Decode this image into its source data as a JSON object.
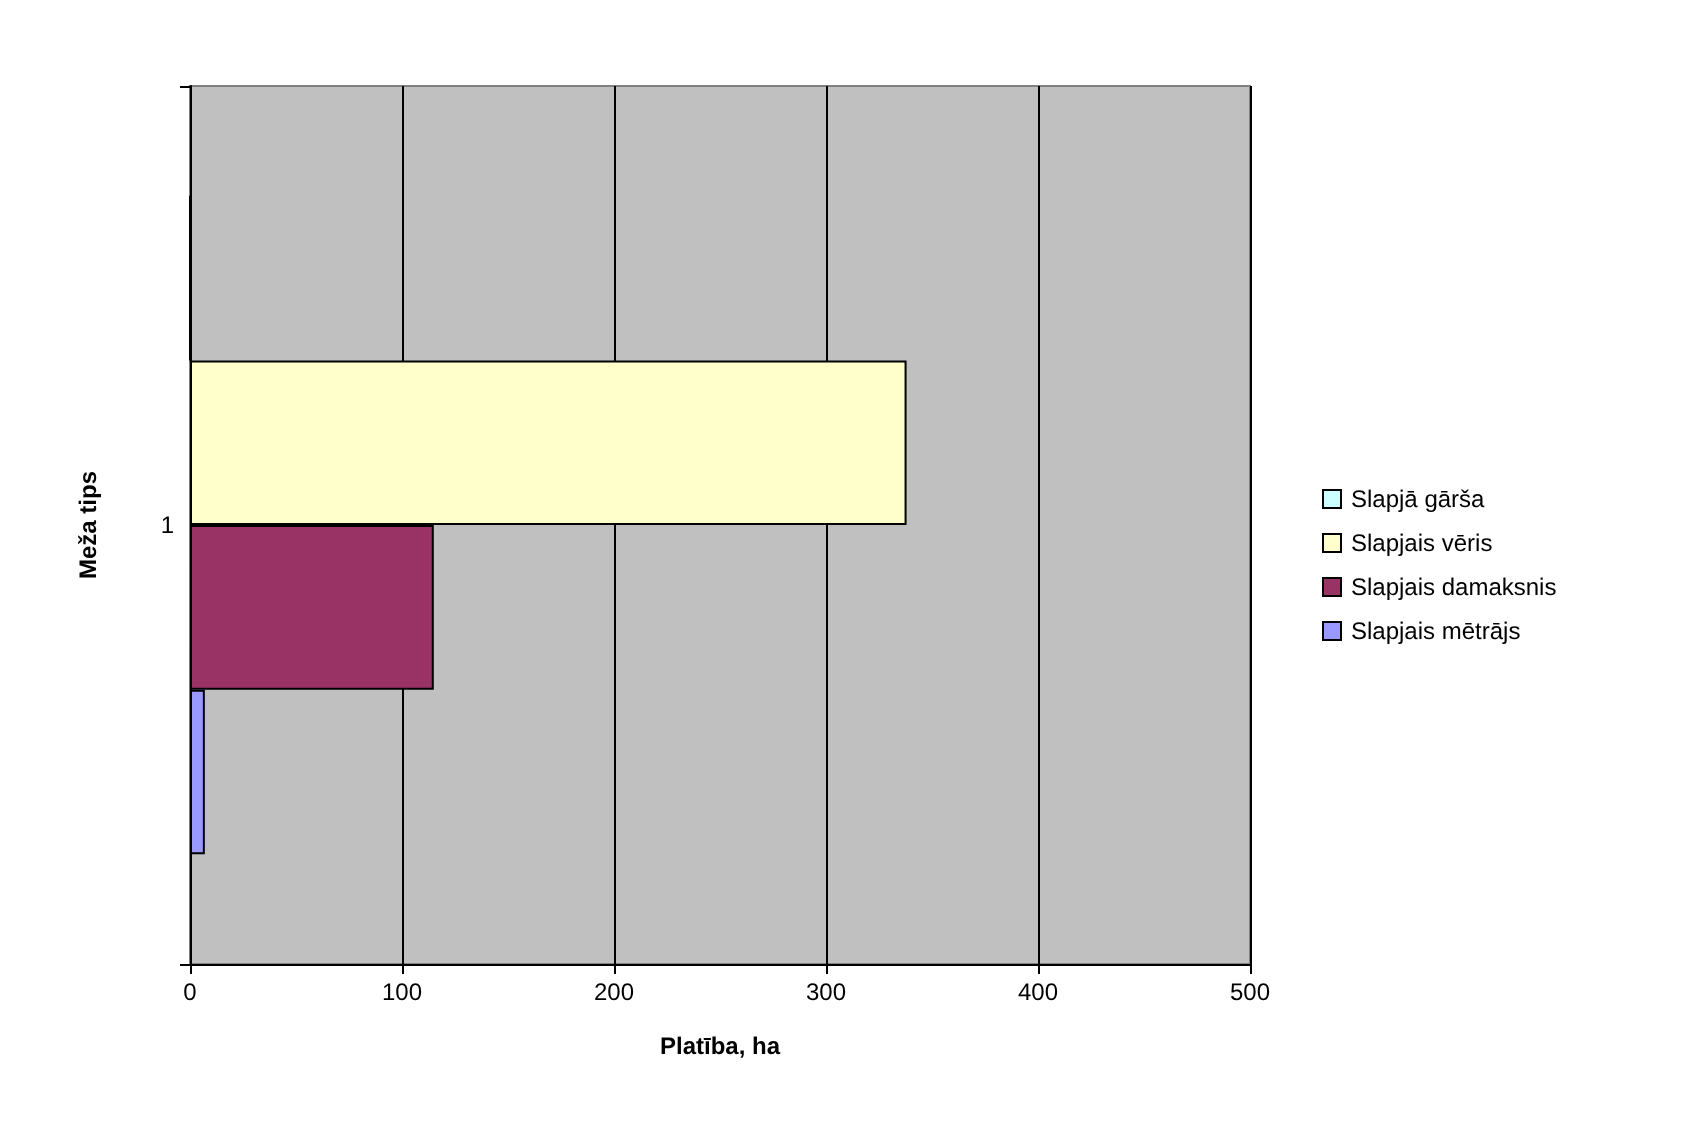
{
  "chart_data": {
    "type": "bar",
    "orientation": "horizontal",
    "xlabel": "Platība, ha",
    "ylabel": "Meža tips",
    "categories": [
      "1"
    ],
    "series": [
      {
        "name": "Slapjā gārša",
        "color": "#ccffff",
        "values": [
          0
        ]
      },
      {
        "name": "Slapjais vēris",
        "color": "#ffffcc",
        "values": [
          338
        ]
      },
      {
        "name": "Slapjais damaksnis",
        "color": "#993366",
        "values": [
          115
        ]
      },
      {
        "name": "Slapjais mētrājs",
        "color": "#9999ff",
        "values": [
          7
        ]
      }
    ],
    "xlim": [
      0,
      500
    ],
    "xticks": [
      0,
      100,
      200,
      300,
      400,
      500
    ],
    "grid": "x",
    "legend": "right"
  }
}
